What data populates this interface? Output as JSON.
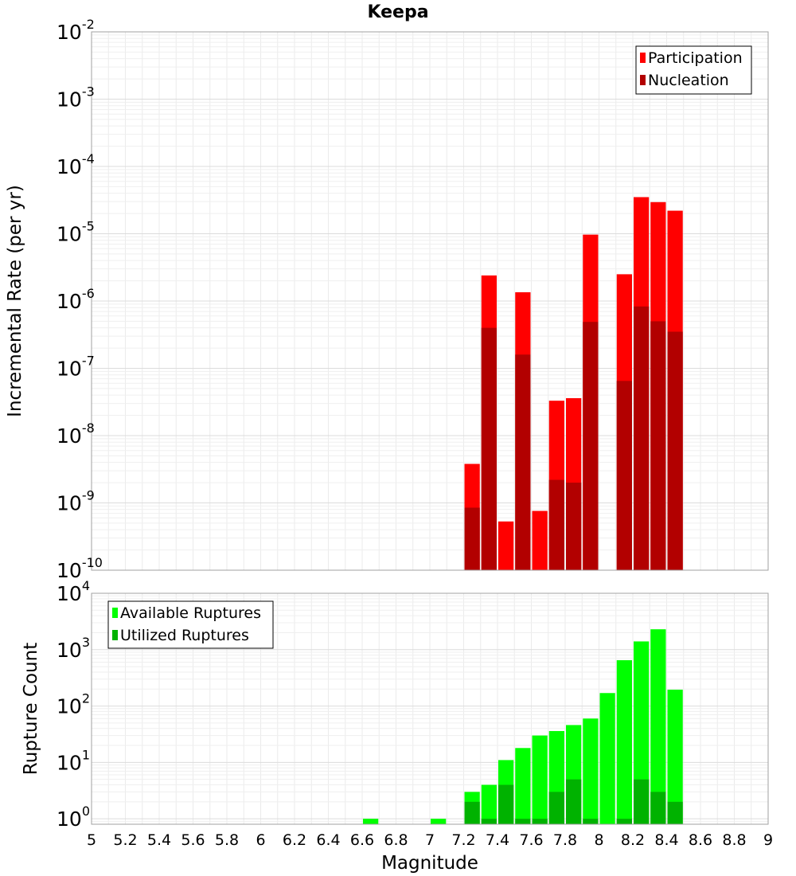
{
  "chart_data": [
    {
      "type": "bar",
      "title": "Keepa",
      "xlabel": "",
      "ylabel": "Incremental Rate (per yr)",
      "yscale": "log",
      "xlim": [
        5,
        9
      ],
      "ylim": [
        1e-10,
        0.01
      ],
      "ytick_exponents": [
        -10,
        -9,
        -8,
        -7,
        -6,
        -5,
        -4,
        -3,
        -2
      ],
      "grid": true,
      "legend_position": "top-right",
      "bar_width": 0.1,
      "series": [
        {
          "name": "Participation",
          "color": "#ff0000",
          "points": [
            {
              "x": 7.25,
              "y": 3.8e-09
            },
            {
              "x": 7.35,
              "y": 2.4e-06
            },
            {
              "x": 7.45,
              "y": 5.3e-10
            },
            {
              "x": 7.55,
              "y": 1.35e-06
            },
            {
              "x": 7.65,
              "y": 7.6e-10
            },
            {
              "x": 7.75,
              "y": 3.3e-08
            },
            {
              "x": 7.85,
              "y": 3.6e-08
            },
            {
              "x": 7.95,
              "y": 9.7e-06
            },
            {
              "x": 8.15,
              "y": 2.5e-06
            },
            {
              "x": 8.25,
              "y": 3.5e-05
            },
            {
              "x": 8.35,
              "y": 2.95e-05
            },
            {
              "x": 8.45,
              "y": 2.2e-05
            }
          ]
        },
        {
          "name": "Nucleation",
          "color": "#b20000",
          "points": [
            {
              "x": 7.25,
              "y": 8.5e-10
            },
            {
              "x": 7.35,
              "y": 4e-07
            },
            {
              "x": 7.55,
              "y": 1.6e-07
            },
            {
              "x": 7.75,
              "y": 2.2e-09
            },
            {
              "x": 7.85,
              "y": 2e-09
            },
            {
              "x": 7.95,
              "y": 4.9e-07
            },
            {
              "x": 8.15,
              "y": 6.5e-08
            },
            {
              "x": 8.25,
              "y": 8.3e-07
            },
            {
              "x": 8.35,
              "y": 5e-07
            },
            {
              "x": 8.45,
              "y": 3.5e-07
            }
          ]
        }
      ]
    },
    {
      "type": "bar",
      "title": "",
      "xlabel": "Magnitude",
      "ylabel": "Rupture Count",
      "yscale": "log",
      "xlim": [
        5,
        9
      ],
      "ylim": [
        0.8,
        10000.0
      ],
      "ytick_exponents": [
        0,
        1,
        2,
        3,
        4
      ],
      "xticks": [
        "5",
        "5.2",
        "5.4",
        "5.6",
        "5.8",
        "6",
        "6.2",
        "6.4",
        "6.6",
        "6.8",
        "7",
        "7.2",
        "7.4",
        "7.6",
        "7.8",
        "8",
        "8.2",
        "8.4",
        "8.6",
        "8.8",
        "9"
      ],
      "grid": true,
      "legend_position": "top-left",
      "bar_width": 0.1,
      "series": [
        {
          "name": "Available Ruptures",
          "color": "#00ff00",
          "points": [
            {
              "x": 6.65,
              "y": 1
            },
            {
              "x": 7.05,
              "y": 1
            },
            {
              "x": 7.25,
              "y": 3
            },
            {
              "x": 7.35,
              "y": 4
            },
            {
              "x": 7.45,
              "y": 11
            },
            {
              "x": 7.55,
              "y": 18
            },
            {
              "x": 7.65,
              "y": 30
            },
            {
              "x": 7.75,
              "y": 36
            },
            {
              "x": 7.85,
              "y": 46
            },
            {
              "x": 7.95,
              "y": 60
            },
            {
              "x": 8.05,
              "y": 170
            },
            {
              "x": 8.15,
              "y": 650
            },
            {
              "x": 8.25,
              "y": 1400
            },
            {
              "x": 8.35,
              "y": 2300
            },
            {
              "x": 8.45,
              "y": 195
            }
          ]
        },
        {
          "name": "Utilized Ruptures",
          "color": "#00b200",
          "points": [
            {
              "x": 7.25,
              "y": 2
            },
            {
              "x": 7.35,
              "y": 1
            },
            {
              "x": 7.45,
              "y": 4
            },
            {
              "x": 7.55,
              "y": 1
            },
            {
              "x": 7.65,
              "y": 1
            },
            {
              "x": 7.75,
              "y": 3
            },
            {
              "x": 7.85,
              "y": 5
            },
            {
              "x": 7.95,
              "y": 1
            },
            {
              "x": 8.15,
              "y": 1
            },
            {
              "x": 8.25,
              "y": 5
            },
            {
              "x": 8.35,
              "y": 3
            },
            {
              "x": 8.45,
              "y": 2
            }
          ]
        }
      ]
    }
  ]
}
